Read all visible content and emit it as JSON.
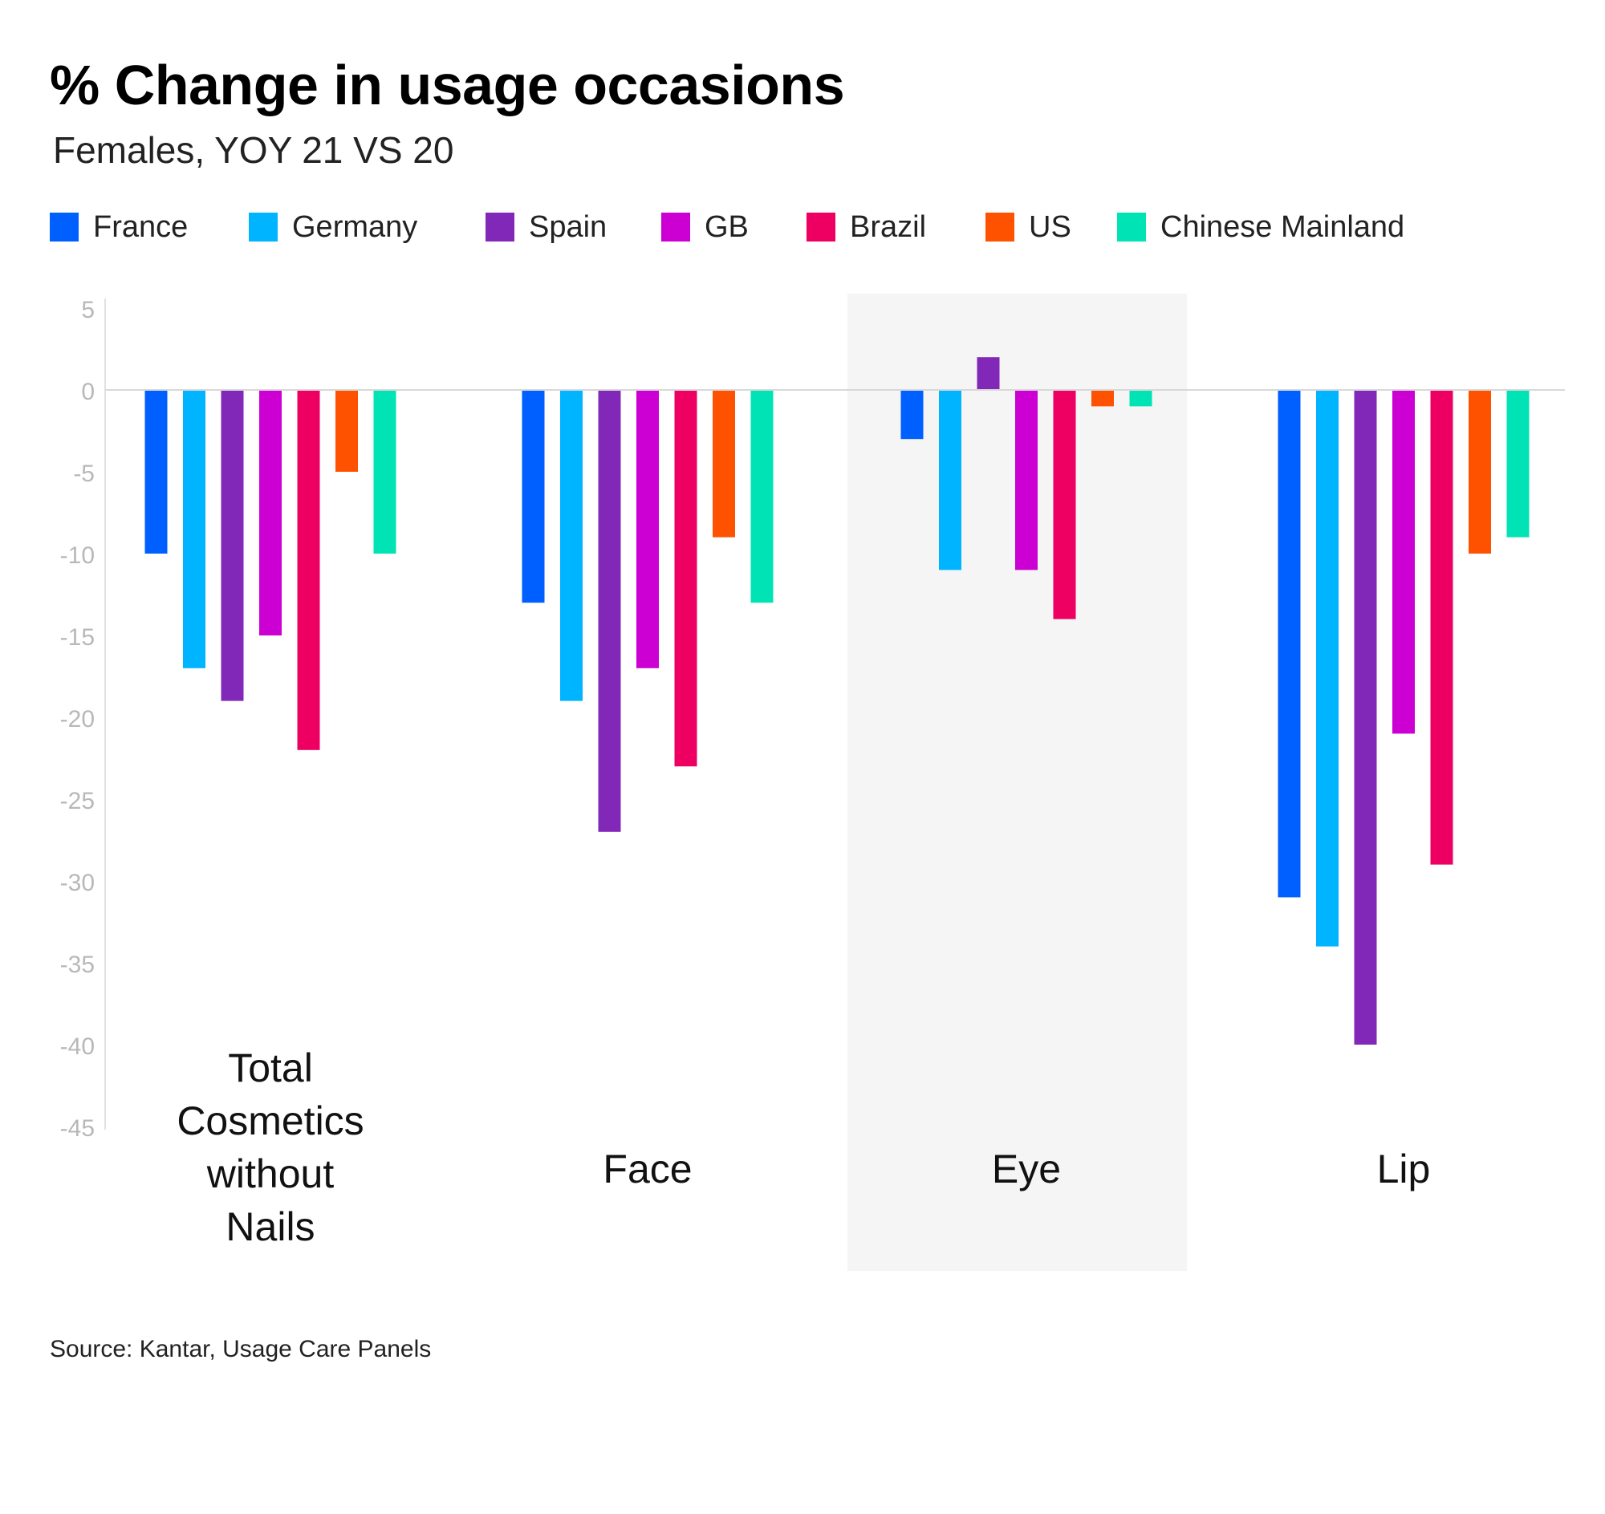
{
  "title": "% Change in usage occasions",
  "subtitle": "Females, YOY 21 VS 20",
  "source": "Source: Kantar, Usage Care Panels",
  "chart_data": {
    "type": "bar",
    "categories": [
      "Total Cosmetics without Nails",
      "Face",
      "Eye",
      "Lip"
    ],
    "category_lines": [
      [
        "Total",
        "Cosmetics",
        "without",
        "Nails"
      ],
      [
        "Face"
      ],
      [
        "Eye"
      ],
      [
        "Lip"
      ]
    ],
    "highlighted_category": "Eye",
    "series": [
      {
        "name": "France",
        "color": "#0060ff",
        "values": [
          -10,
          -13,
          -3,
          -31
        ]
      },
      {
        "name": "Germany",
        "color": "#00b4ff",
        "values": [
          -17,
          -19,
          -11,
          -34
        ]
      },
      {
        "name": "Spain",
        "color": "#8228b8",
        "values": [
          -19,
          -27,
          2,
          -40
        ]
      },
      {
        "name": "GB",
        "color": "#cc00d2",
        "values": [
          -15,
          -17,
          -11,
          -21
        ]
      },
      {
        "name": "Brazil",
        "color": "#ee0062",
        "values": [
          -22,
          -23,
          -14,
          -29
        ]
      },
      {
        "name": "US",
        "color": "#ff5200",
        "values": [
          -5,
          -9,
          -1,
          -10
        ]
      },
      {
        "name": "Chinese Mainland",
        "color": "#00e3b4",
        "values": [
          -10,
          -13,
          -1,
          -9
        ]
      }
    ],
    "y_ticks": [
      "5",
      "0",
      "-5",
      "-10",
      "-15",
      "-20",
      "-25",
      "-30",
      "-35",
      "-40",
      "-45"
    ],
    "ylim": [
      -45,
      5
    ],
    "grid": false,
    "legend_position": "top-left"
  }
}
